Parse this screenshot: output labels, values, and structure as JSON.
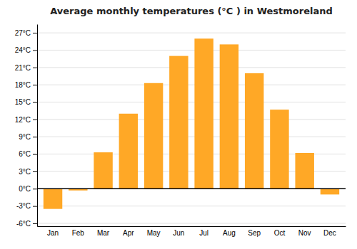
{
  "chart_data": {
    "type": "bar",
    "title": "Average monthly temperatures (°C ) in Westmoreland",
    "categories": [
      "Jan",
      "Feb",
      "Mar",
      "Apr",
      "May",
      "Jun",
      "Jul",
      "Aug",
      "Sep",
      "Oct",
      "Nov",
      "Dec"
    ],
    "values": [
      -3.5,
      -0.3,
      6.3,
      13.0,
      18.3,
      23.0,
      26.0,
      25.0,
      20.0,
      13.7,
      6.2,
      -1.0
    ],
    "color": "#FFA826",
    "ylim": [
      -6.5,
      28.5
    ],
    "yticks": [
      {
        "value": -6,
        "label": "-6°C"
      },
      {
        "value": -3,
        "label": "-3°C"
      },
      {
        "value": 0,
        "label": "0°C"
      },
      {
        "value": 3,
        "label": "3°C"
      },
      {
        "value": 6,
        "label": "6°C"
      },
      {
        "value": 9,
        "label": "9°C"
      },
      {
        "value": 12,
        "label": "12°C"
      },
      {
        "value": 15,
        "label": "15°C"
      },
      {
        "value": 18,
        "label": "18°C"
      },
      {
        "value": 21,
        "label": "21°C"
      },
      {
        "value": 24,
        "label": "24°C"
      },
      {
        "value": 27,
        "label": "27°C"
      }
    ],
    "grid": true
  }
}
